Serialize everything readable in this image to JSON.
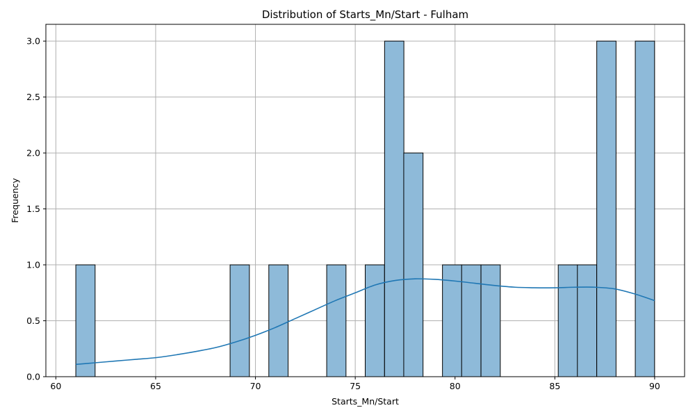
{
  "chart_data": {
    "type": "bar",
    "title": "Distribution of Starts_Mn/Start - Fulham",
    "xlabel": "Starts_Mn/Start",
    "ylabel": "Frequency",
    "xlim": [
      59.5,
      91.5
    ],
    "ylim": [
      0,
      3.15
    ],
    "xticks": [
      60,
      65,
      70,
      75,
      80,
      85,
      90
    ],
    "yticks": [
      0.0,
      0.5,
      1.0,
      1.5,
      2.0,
      2.5,
      3.0
    ],
    "xtick_labels": [
      "60",
      "65",
      "70",
      "75",
      "80",
      "85",
      "90"
    ],
    "ytick_labels": [
      "0.0",
      "0.5",
      "1.0",
      "1.5",
      "2.0",
      "2.5",
      "3.0"
    ],
    "grid": true,
    "bin_start": 61.0,
    "bin_width": 0.9667,
    "bins": [
      {
        "x0": 61.0,
        "count": 1
      },
      {
        "x0": 68.73,
        "count": 1
      },
      {
        "x0": 70.67,
        "count": 1
      },
      {
        "x0": 73.57,
        "count": 1
      },
      {
        "x0": 75.5,
        "count": 1
      },
      {
        "x0": 76.47,
        "count": 3
      },
      {
        "x0": 77.43,
        "count": 2
      },
      {
        "x0": 79.37,
        "count": 1
      },
      {
        "x0": 80.33,
        "count": 1
      },
      {
        "x0": 81.3,
        "count": 1
      },
      {
        "x0": 85.17,
        "count": 1
      },
      {
        "x0": 86.13,
        "count": 1
      },
      {
        "x0": 87.1,
        "count": 3
      },
      {
        "x0": 89.03,
        "count": 3
      }
    ],
    "kde": {
      "x": [
        61,
        62,
        63,
        64,
        65,
        66,
        67,
        68,
        69,
        70,
        71,
        72,
        73,
        74,
        75,
        76,
        77,
        78,
        79,
        80,
        81,
        82,
        83,
        84,
        85,
        86,
        87,
        88,
        89,
        90
      ],
      "y": [
        0.11,
        0.125,
        0.14,
        0.155,
        0.17,
        0.195,
        0.225,
        0.26,
        0.31,
        0.37,
        0.44,
        0.52,
        0.6,
        0.68,
        0.75,
        0.82,
        0.86,
        0.875,
        0.87,
        0.855,
        0.835,
        0.815,
        0.8,
        0.795,
        0.795,
        0.8,
        0.8,
        0.785,
        0.74,
        0.68
      ]
    },
    "colors": {
      "bar_fill": "#8ebad9",
      "bar_edge": "#000000",
      "kde_line": "#1f77b4",
      "grid": "#b0b0b0"
    }
  }
}
